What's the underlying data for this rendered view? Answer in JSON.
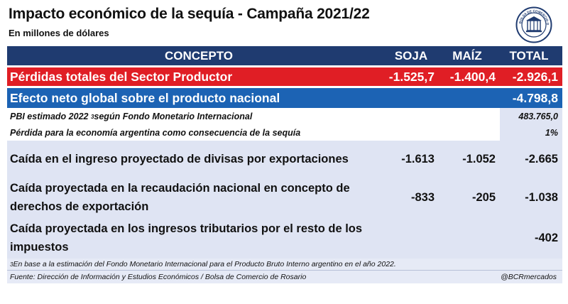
{
  "header": {
    "title": "Impacto económico de la sequía - Campaña 2021/22",
    "subtitle": "En millones de dólares"
  },
  "table": {
    "columns": [
      "CONCEPTO",
      "SOJA",
      "MAÍZ",
      "TOTAL"
    ],
    "perdidas": {
      "label": "Pérdidas totales del Sector Productor",
      "soja": "-1.525,7",
      "maiz": "-1.400,4",
      "total": "-2.926,1"
    },
    "efecto": {
      "label": "Efecto neto global sobre el producto nacional",
      "total": "-4.798,8"
    },
    "pbi": {
      "label": "PBI estimado 2022",
      "sup": "3",
      "label_rest": " según Fondo Monetario Internacional",
      "total": "483.765,0"
    },
    "perdida_eco": {
      "label": "Pérdida para la economía argentina como consecuencia de la sequía",
      "total": "1%"
    },
    "caida_divisas": {
      "label": "Caída en el ingreso proyectado de divisas por exportaciones",
      "soja": "-1.613",
      "maiz": "-1.052",
      "total": "-2.665"
    },
    "caida_derechos": {
      "label": "Caída proyectada en la recaudación nacional en concepto de derechos de exportación",
      "soja": "-833",
      "maiz": "-205",
      "total": "-1.038"
    },
    "caida_tributarios": {
      "label": "Caída proyectada en los ingresos tributarios por el resto de los impuestos",
      "total": "-402"
    }
  },
  "footer": {
    "note_sup": "3",
    "note": " En base a la estimación del Fondo Monetario Internacional para el Producto Bruto Interno argentino en el año 2022.",
    "source": "Fuente: Dirección de Información y Estudios Económicos / Bolsa de Comercio de Rosario",
    "handle": "@BCRmercados"
  },
  "logo": {
    "icon": "bcr-seal-icon",
    "text": "BOLSA DE COMERCIO DE ROSARIO"
  },
  "colors": {
    "header_bg": "#1f3b70",
    "loss_bg": "#e01e25",
    "efecto_bg": "#1c63b4",
    "light_bg": "#dfe4f3"
  }
}
